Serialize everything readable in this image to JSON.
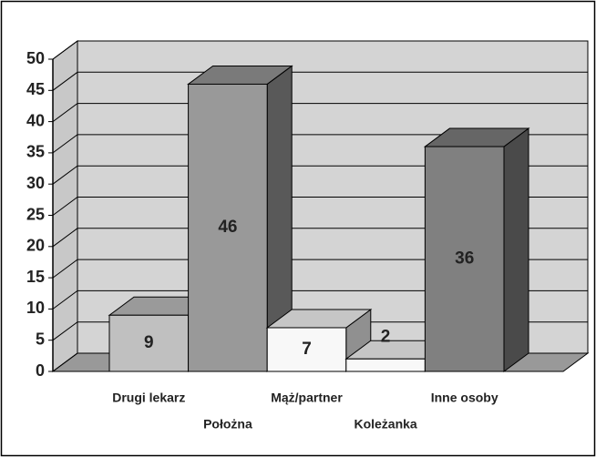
{
  "chart_data": {
    "type": "bar",
    "categories": [
      "Drugi lekarz",
      "Położna",
      "Mąż/partner",
      "Koleżanka",
      "Inne osoby"
    ],
    "values": [
      9,
      46,
      7,
      2,
      36
    ],
    "colors": [
      "#c0c0c0",
      "#999999",
      "#f8f8f8",
      "#f8f8f8",
      "#808080"
    ],
    "ylim": [
      0,
      50
    ],
    "yticks": [
      0,
      5,
      10,
      15,
      20,
      25,
      30,
      35,
      40,
      45,
      50
    ],
    "grid": true
  }
}
